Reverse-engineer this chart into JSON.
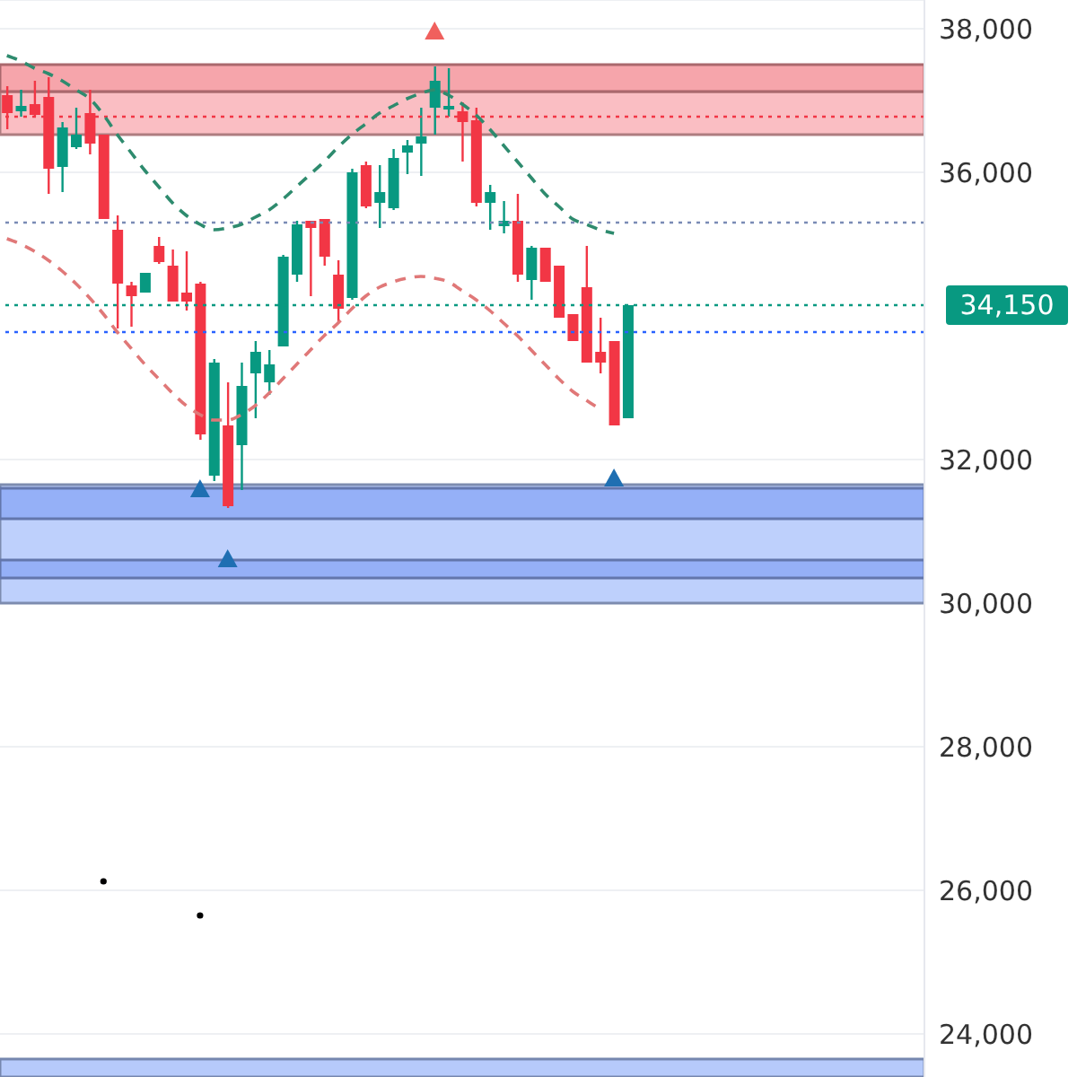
{
  "chart_data": {
    "type": "candlestick",
    "categories": [
      null,
      null,
      null,
      null,
      null,
      null,
      null,
      null,
      null,
      null,
      null,
      null,
      null,
      null,
      null,
      null,
      null,
      null,
      null,
      null,
      null,
      null,
      null,
      null,
      null,
      null,
      null,
      null,
      null,
      null,
      null,
      null,
      null,
      null,
      null,
      null,
      null,
      null,
      null,
      null,
      null,
      null,
      null,
      null,
      null,
      null,
      null,
      null,
      null,
      null,
      null,
      null,
      null,
      null,
      null,
      null,
      null,
      null,
      null,
      null,
      null,
      null,
      null,
      null,
      null,
      null,
      null
    ],
    "ohlc": [
      [
        37075,
        37200,
        36600,
        36825
      ],
      [
        36850,
        37150,
        36775,
        36925
      ],
      [
        36950,
        37275,
        36775,
        36800
      ],
      [
        37050,
        37325,
        35700,
        36050
      ],
      [
        36075,
        36700,
        35725,
        36625
      ],
      [
        36350,
        36900,
        36325,
        36525
      ],
      [
        36825,
        37150,
        36250,
        36400
      ],
      [
        36525,
        36525,
        35350,
        35350
      ],
      [
        35200,
        35400,
        33825,
        34450
      ],
      [
        34425,
        34475,
        33850,
        34275
      ],
      [
        34325,
        34600,
        34325,
        34600
      ],
      [
        34975,
        35100,
        34725,
        34750
      ],
      [
        34700,
        34925,
        34200,
        34200
      ],
      [
        34325,
        34900,
        34075,
        34200
      ],
      [
        34450,
        34475,
        32275,
        32350
      ],
      [
        31775,
        33400,
        31700,
        33350
      ],
      [
        32475,
        33075,
        31325,
        31350
      ],
      [
        32200,
        33350,
        31575,
        33025
      ],
      [
        33200,
        33650,
        32575,
        33500
      ],
      [
        33075,
        33525,
        32900,
        33325
      ],
      [
        33575,
        34850,
        33575,
        34825
      ],
      [
        34575,
        35325,
        34475,
        35275
      ],
      [
        35325,
        35325,
        34275,
        35225
      ],
      [
        35350,
        35350,
        34700,
        34825
      ],
      [
        34575,
        34775,
        33900,
        34100
      ],
      [
        34250,
        36050,
        34225,
        36000
      ],
      [
        36100,
        36150,
        35500,
        35525
      ],
      [
        35575,
        36100,
        35225,
        35725
      ],
      [
        35500,
        36325,
        35475,
        36200
      ],
      [
        36275,
        36450,
        35975,
        36375
      ],
      [
        36400,
        36900,
        35950,
        36500
      ],
      [
        36900,
        37475,
        36525,
        37275
      ],
      [
        36875,
        37450,
        36775,
        36925
      ],
      [
        36850,
        36975,
        36150,
        36700
      ],
      [
        36725,
        36900,
        35525,
        35575
      ],
      [
        35575,
        35825,
        35200,
        35725
      ],
      [
        35250,
        35600,
        35150,
        35325
      ],
      [
        35325,
        35700,
        34475,
        34575
      ],
      [
        34500,
        34975,
        34225,
        34950
      ],
      [
        34950,
        34950,
        34475,
        34475
      ],
      [
        34700,
        34700,
        33975,
        33975
      ],
      [
        34025,
        34025,
        33650,
        33650
      ],
      [
        34400,
        34975,
        33350,
        33350
      ],
      [
        33500,
        33975,
        33200,
        33350
      ],
      [
        33650,
        33650,
        32475,
        32475
      ],
      [
        32575,
        34150,
        32575,
        34150
      ],
      null,
      null,
      null,
      null,
      null,
      null,
      null,
      null,
      null,
      null,
      null,
      null,
      null,
      null,
      null,
      null,
      null,
      null,
      null,
      null,
      null
    ],
    "series": [
      {
        "type": "line",
        "color": "#2e8b6e",
        "line_style": "dashed",
        "values": [
          37625,
          37550,
          37450,
          37375,
          37275,
          37150,
          37025,
          36800,
          36525,
          36275,
          36025,
          35800,
          35575,
          35400,
          35275,
          35200,
          35225,
          35275,
          35375,
          35475,
          35625,
          35800,
          35975,
          36150,
          36350,
          36525,
          36675,
          36825,
          36925,
          37025,
          37100,
          37150,
          37075,
          36950,
          36800,
          36600,
          36375,
          36150,
          35925,
          35700,
          35525,
          35350,
          35275,
          35200,
          35150,
          null,
          null,
          null,
          null,
          null,
          null,
          null,
          null,
          null,
          null,
          null,
          null,
          null,
          null,
          null,
          null,
          null,
          null,
          null,
          null,
          null,
          null
        ]
      },
      {
        "type": "line",
        "color": "#e07878",
        "line_style": "dashed",
        "values": [
          35075,
          35000,
          34900,
          34775,
          34625,
          34450,
          34250,
          34025,
          33775,
          33550,
          33325,
          33125,
          32925,
          32750,
          32625,
          32550,
          32550,
          32625,
          32750,
          32925,
          33125,
          33325,
          33525,
          33725,
          33900,
          34100,
          34275,
          34400,
          34475,
          34525,
          34550,
          34525,
          34475,
          34350,
          34225,
          34075,
          33900,
          33725,
          33525,
          33325,
          33125,
          32950,
          32825,
          32700,
          null,
          null,
          null,
          null,
          null,
          null,
          null,
          null,
          null,
          null,
          null,
          null,
          null,
          null,
          null,
          null,
          null,
          null,
          null,
          null,
          null,
          null,
          null
        ]
      },
      {
        "type": "scatter",
        "color": "#1f6fb2",
        "marker": "triangle",
        "values": [
          null,
          null,
          null,
          null,
          null,
          null,
          null,
          null,
          null,
          null,
          null,
          null,
          null,
          null,
          31575,
          null,
          30600,
          null,
          null,
          null,
          null,
          null,
          null,
          null,
          null,
          null,
          null,
          null,
          null,
          null,
          null,
          null,
          null,
          null,
          null,
          null,
          null,
          null,
          null,
          null,
          null,
          null,
          null,
          null,
          31725,
          null,
          null,
          null,
          null,
          null,
          null,
          null,
          null,
          null,
          null,
          null,
          null,
          null,
          null,
          null,
          null,
          null,
          null,
          null,
          null,
          null,
          null
        ]
      },
      {
        "type": "scatter",
        "color": "#f0605d",
        "marker": "triangle",
        "values": [
          null,
          null,
          null,
          null,
          null,
          null,
          null,
          null,
          null,
          null,
          null,
          null,
          null,
          null,
          null,
          null,
          null,
          null,
          null,
          null,
          null,
          null,
          null,
          null,
          null,
          null,
          null,
          null,
          null,
          null,
          null,
          37950,
          null,
          null,
          null,
          null,
          null,
          null,
          null,
          null,
          null,
          null,
          null,
          null,
          null,
          null,
          null,
          null,
          null,
          null,
          null,
          null,
          null,
          null,
          null,
          null,
          null,
          null,
          null,
          null,
          null,
          null,
          null,
          null,
          null,
          null,
          null
        ]
      },
      {
        "type": "scatter",
        "color": "#000000",
        "marker": "circle",
        "values": [
          null,
          null,
          null,
          null,
          null,
          null,
          null,
          26125,
          null,
          null,
          null,
          null,
          null,
          null,
          25650,
          null,
          null,
          null,
          null,
          null,
          null,
          null,
          null,
          null,
          null,
          null,
          null,
          null,
          null,
          null,
          null,
          null,
          null,
          null,
          null,
          null,
          null,
          null,
          null,
          null,
          null,
          null,
          null,
          null,
          null,
          null,
          null,
          null,
          null,
          null,
          null,
          null,
          null,
          null,
          null,
          null,
          null,
          null,
          null,
          null,
          null,
          null,
          null,
          null,
          null,
          null,
          null
        ]
      }
    ],
    "ylim": [
      23400,
      38400
    ],
    "yticks": [
      {
        "value": 24000,
        "label": "24,000"
      },
      {
        "value": 26000,
        "label": "26,000"
      },
      {
        "value": 28000,
        "label": "28,000"
      },
      {
        "value": 30000,
        "label": "30,000"
      },
      {
        "value": 32000,
        "label": "32,000"
      },
      {
        "value": 36000,
        "label": "36,000"
      },
      {
        "value": 38000,
        "label": "38,000"
      }
    ],
    "grid": "y",
    "tick_labels": "y",
    "ref_lines": [
      {
        "axis": "y",
        "value": 36775,
        "color": "#f23645",
        "line_style": "dotted"
      },
      {
        "axis": "y",
        "value": 35300,
        "color": "#7a8bb5",
        "line_style": "dotted"
      },
      {
        "axis": "y",
        "value": 33775,
        "color": "#2962ff",
        "line_style": "dotted"
      },
      {
        "axis": "y",
        "value": 34150,
        "color": "#089981",
        "line_style": "dotted",
        "label": "34,150"
      }
    ],
    "bands": [
      {
        "axis": "y",
        "from": 36525,
        "to": 37125,
        "color": "#f9b3b8"
      },
      {
        "axis": "y",
        "from": 37125,
        "to": 37500,
        "color": "#f4959c"
      },
      {
        "axis": "y",
        "from": 30000,
        "to": 31650,
        "color": "#b3c8fb"
      },
      {
        "axis": "y",
        "from": 31175,
        "to": 31600,
        "color": "#8eaaf6"
      },
      {
        "axis": "y",
        "from": 30350,
        "to": 30600,
        "color": "#8eaaf6"
      },
      {
        "axis": "y",
        "from": 23400,
        "to": 23650,
        "color": "#a9c1fa"
      }
    ]
  }
}
